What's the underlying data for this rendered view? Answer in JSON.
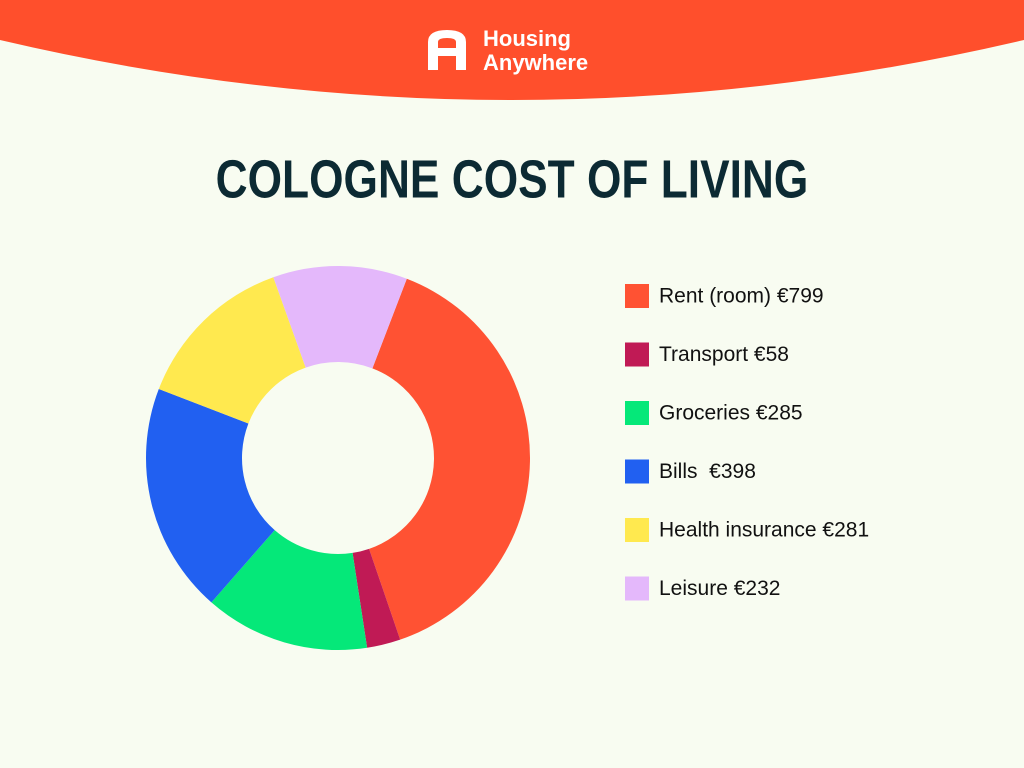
{
  "header": {
    "brand": [
      "Housing",
      "Anywhere"
    ]
  },
  "chart_data": {
    "type": "donut",
    "title": "COLOGNE COST OF LIVING",
    "categories": [
      "Rent (room) €799",
      "Transport €58",
      "Groceries €285",
      "Bills  €398",
      "Health insurance €281",
      "Leisure €232"
    ],
    "values": [
      799,
      58,
      285,
      398,
      281,
      232
    ],
    "colors": [
      "#ff5233",
      "#c01a55",
      "#05e879",
      "#2160f1",
      "#ffe94f",
      "#e4b8fb"
    ],
    "legend": "right"
  }
}
